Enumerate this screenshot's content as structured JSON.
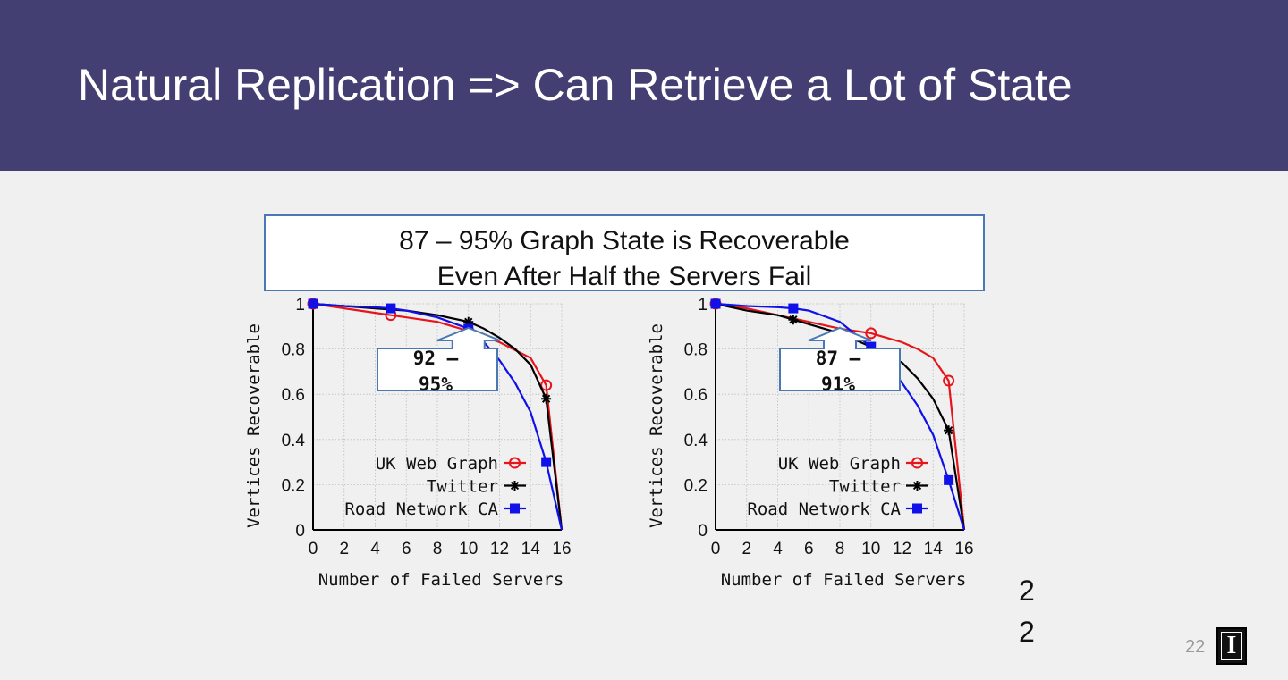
{
  "slide": {
    "title": "Natural Replication => Can Retrieve a Lot of State",
    "callout_line1": "87 – 95% Graph State is Recoverable",
    "callout_line2": "Even After Half the Servers Fail",
    "stray_text_1": "2",
    "stray_text_2": "2",
    "page_number": "22",
    "logo_letter": "I"
  },
  "colors": {
    "header": "#433f73",
    "uk": "#e8141b",
    "twitter": "#000000",
    "road": "#1010e8",
    "arrow_border": "#4a78b4"
  },
  "chart_data": [
    {
      "type": "line",
      "title": "",
      "xlabel": "Number of Failed Servers",
      "ylabel": "Vertices Recoverable",
      "xlim": [
        0,
        16
      ],
      "ylim": [
        0,
        1
      ],
      "xticks": [
        "0",
        "2",
        "4",
        "6",
        "8",
        "10",
        "12",
        "14",
        "16"
      ],
      "yticks": [
        "0",
        "0.2",
        "0.4",
        "0.6",
        "0.8",
        "1"
      ],
      "grid": true,
      "legend": "lower-left",
      "annotation": {
        "line1": "92 –",
        "line2": "95%",
        "x": 10,
        "y": 0.9
      },
      "series": [
        {
          "name": "UK Web Graph",
          "marker": "circle",
          "x": [
            0,
            2,
            4,
            5,
            6,
            8,
            10,
            12,
            14,
            15,
            16
          ],
          "y": [
            1,
            0.98,
            0.96,
            0.95,
            0.94,
            0.92,
            0.88,
            0.83,
            0.76,
            0.64,
            0
          ],
          "marker_x": [
            0,
            5,
            10,
            15
          ],
          "marker_y": [
            1,
            0.95,
            0.88,
            0.64
          ]
        },
        {
          "name": "Twitter",
          "marker": "star",
          "x": [
            0,
            2,
            4,
            6,
            8,
            10,
            11,
            12,
            13,
            14,
            15,
            16
          ],
          "y": [
            1,
            0.99,
            0.98,
            0.97,
            0.95,
            0.92,
            0.89,
            0.85,
            0.8,
            0.73,
            0.58,
            0
          ],
          "marker_x": [
            0,
            10,
            15
          ],
          "marker_y": [
            1,
            0.92,
            0.58
          ]
        },
        {
          "name": "Road Network CA",
          "marker": "square",
          "x": [
            0,
            2,
            4,
            5,
            6,
            8,
            10,
            11,
            12,
            13,
            14,
            15,
            16
          ],
          "y": [
            1,
            0.99,
            0.985,
            0.98,
            0.97,
            0.94,
            0.89,
            0.83,
            0.75,
            0.65,
            0.52,
            0.3,
            0
          ],
          "marker_x": [
            0,
            5,
            10,
            15
          ],
          "marker_y": [
            1,
            0.98,
            0.89,
            0.3
          ]
        }
      ]
    },
    {
      "type": "line",
      "title": "",
      "xlabel": "Number of Failed Servers",
      "ylabel": "Vertices Recoverable",
      "xlim": [
        0,
        16
      ],
      "ylim": [
        0,
        1
      ],
      "xticks": [
        "0",
        "2",
        "4",
        "6",
        "8",
        "10",
        "12",
        "14",
        "16"
      ],
      "yticks": [
        "0",
        "0.2",
        "0.4",
        "0.6",
        "0.8",
        "1"
      ],
      "grid": true,
      "legend": "lower-left",
      "annotation": {
        "line1": "87 –",
        "line2": "91%",
        "x": 8,
        "y": 0.83
      },
      "series": [
        {
          "name": "UK Web Graph",
          "marker": "circle",
          "x": [
            0,
            2,
            4,
            6,
            8,
            10,
            12,
            13,
            14,
            15,
            16
          ],
          "y": [
            1,
            0.98,
            0.95,
            0.92,
            0.89,
            0.87,
            0.83,
            0.8,
            0.76,
            0.66,
            0
          ],
          "marker_x": [
            0,
            10,
            15
          ],
          "marker_y": [
            1,
            0.87,
            0.66
          ]
        },
        {
          "name": "Twitter",
          "marker": "star",
          "x": [
            0,
            2,
            4,
            5,
            6,
            8,
            10,
            12,
            13,
            14,
            15,
            16
          ],
          "y": [
            1,
            0.97,
            0.95,
            0.93,
            0.91,
            0.87,
            0.81,
            0.74,
            0.67,
            0.58,
            0.44,
            0
          ],
          "marker_x": [
            0,
            5,
            15
          ],
          "marker_y": [
            1,
            0.93,
            0.44
          ]
        },
        {
          "name": "Road Network CA",
          "marker": "square",
          "x": [
            0,
            2,
            4,
            5,
            6,
            8,
            10,
            11,
            12,
            13,
            14,
            15,
            16
          ],
          "y": [
            1,
            0.99,
            0.985,
            0.98,
            0.97,
            0.92,
            0.81,
            0.74,
            0.65,
            0.55,
            0.42,
            0.22,
            0
          ],
          "marker_x": [
            0,
            5,
            10,
            15
          ],
          "marker_y": [
            1,
            0.98,
            0.81,
            0.22
          ]
        }
      ]
    }
  ]
}
